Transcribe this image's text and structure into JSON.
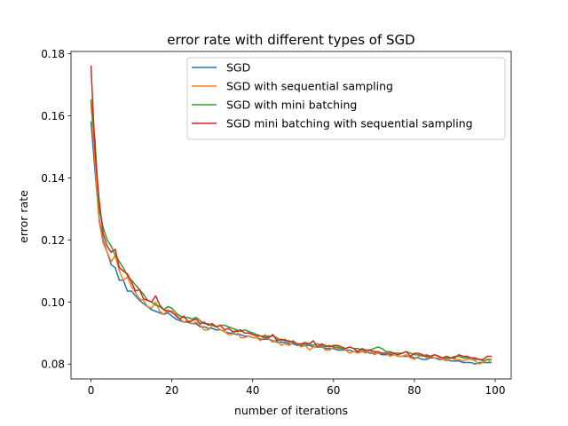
{
  "chart_data": {
    "type": "line",
    "title": "error rate with different types of SGD",
    "xlabel": "number of iterations",
    "ylabel": "error rate",
    "xlim": [
      -4.95,
      103.95
    ],
    "ylim": [
      0.0752,
      0.1807
    ],
    "xticks": [
      0,
      20,
      40,
      60,
      80,
      100
    ],
    "xtick_labels": [
      "0",
      "20",
      "40",
      "60",
      "80",
      "100"
    ],
    "yticks": [
      0.08,
      0.1,
      0.12,
      0.14,
      0.16,
      0.18
    ],
    "ytick_labels": [
      "0.08",
      "0.10",
      "0.12",
      "0.14",
      "0.16",
      "0.18"
    ],
    "grid": false,
    "legend": "top-right",
    "x": [
      0,
      1,
      2,
      3,
      4,
      5,
      6,
      7,
      8,
      9,
      10,
      11,
      12,
      13,
      14,
      15,
      16,
      17,
      18,
      19,
      20,
      21,
      22,
      23,
      24,
      25,
      26,
      27,
      28,
      29,
      30,
      31,
      32,
      33,
      34,
      35,
      36,
      37,
      38,
      39,
      40,
      41,
      42,
      43,
      44,
      45,
      46,
      47,
      48,
      49,
      50,
      51,
      52,
      53,
      54,
      55,
      56,
      57,
      58,
      59,
      60,
      61,
      62,
      63,
      64,
      65,
      66,
      67,
      68,
      69,
      70,
      71,
      72,
      73,
      74,
      75,
      76,
      77,
      78,
      79,
      80,
      81,
      82,
      83,
      84,
      85,
      86,
      87,
      88,
      89,
      90,
      91,
      92,
      93,
      94,
      95,
      96,
      97,
      98,
      99
    ],
    "series": [
      {
        "name": "SGD",
        "color": "#1f77b4",
        "values": [
          0.158,
          0.142,
          0.127,
          0.12,
          0.116,
          0.112,
          0.111,
          0.107,
          0.107,
          0.1035,
          0.1035,
          0.102,
          0.1005,
          0.0995,
          0.0985,
          0.0975,
          0.097,
          0.0965,
          0.096,
          0.0965,
          0.0955,
          0.0945,
          0.094,
          0.0935,
          0.0935,
          0.093,
          0.093,
          0.092,
          0.092,
          0.0915,
          0.0915,
          0.091,
          0.091,
          0.0905,
          0.09,
          0.09,
          0.0895,
          0.0895,
          0.089,
          0.089,
          0.0885,
          0.0885,
          0.088,
          0.088,
          0.088,
          0.0875,
          0.087,
          0.087,
          0.087,
          0.0865,
          0.0865,
          0.086,
          0.086,
          0.086,
          0.086,
          0.0855,
          0.0855,
          0.0855,
          0.085,
          0.085,
          0.085,
          0.0845,
          0.0845,
          0.0845,
          0.0845,
          0.084,
          0.084,
          0.084,
          0.084,
          0.0835,
          0.0835,
          0.0835,
          0.083,
          0.083,
          0.083,
          0.083,
          0.0825,
          0.0825,
          0.0825,
          0.0825,
          0.082,
          0.082,
          0.0815,
          0.0815,
          0.082,
          0.082,
          0.0815,
          0.0815,
          0.0815,
          0.081,
          0.081,
          0.081,
          0.0805,
          0.0805,
          0.0805,
          0.08,
          0.0805,
          0.0805,
          0.0805,
          0.0805
        ]
      },
      {
        "name": "SGD with sequential sampling",
        "color": "#ff7f0e",
        "values": [
          0.164,
          0.145,
          0.126,
          0.119,
          0.116,
          0.113,
          0.115,
          0.11,
          0.107,
          0.108,
          0.105,
          0.103,
          0.101,
          0.1005,
          0.0985,
          0.098,
          0.1,
          0.097,
          0.096,
          0.0975,
          0.0965,
          0.096,
          0.0945,
          0.0935,
          0.094,
          0.093,
          0.0935,
          0.0925,
          0.091,
          0.091,
          0.0925,
          0.092,
          0.091,
          0.0905,
          0.0895,
          0.0895,
          0.091,
          0.0885,
          0.0885,
          0.089,
          0.0885,
          0.0885,
          0.0875,
          0.0895,
          0.088,
          0.087,
          0.088,
          0.086,
          0.0865,
          0.086,
          0.087,
          0.0865,
          0.0855,
          0.086,
          0.0845,
          0.0855,
          0.0855,
          0.086,
          0.0845,
          0.0845,
          0.0855,
          0.085,
          0.085,
          0.0845,
          0.0835,
          0.084,
          0.0835,
          0.084,
          0.0835,
          0.0845,
          0.083,
          0.0835,
          0.0835,
          0.0835,
          0.0825,
          0.083,
          0.0825,
          0.0825,
          0.083,
          0.082,
          0.0815,
          0.0825,
          0.083,
          0.082,
          0.0825,
          0.082,
          0.082,
          0.0815,
          0.081,
          0.082,
          0.0815,
          0.0815,
          0.081,
          0.0815,
          0.0815,
          0.081,
          0.08,
          0.0805,
          0.0815,
          0.0805
        ]
      },
      {
        "name": "SGD with mini batching",
        "color": "#2ca02c",
        "values": [
          0.165,
          0.152,
          0.13,
          0.124,
          0.12,
          0.118,
          0.115,
          0.113,
          0.111,
          0.1085,
          0.107,
          0.1055,
          0.104,
          0.1025,
          0.1005,
          0.1,
          0.099,
          0.0985,
          0.0975,
          0.0985,
          0.098,
          0.0965,
          0.0955,
          0.095,
          0.095,
          0.0945,
          0.095,
          0.094,
          0.093,
          0.093,
          0.0925,
          0.092,
          0.0925,
          0.0925,
          0.092,
          0.0915,
          0.091,
          0.0905,
          0.091,
          0.0905,
          0.09,
          0.0895,
          0.089,
          0.089,
          0.089,
          0.089,
          0.0885,
          0.0875,
          0.088,
          0.087,
          0.0875,
          0.0865,
          0.0865,
          0.087,
          0.0865,
          0.086,
          0.0865,
          0.086,
          0.0855,
          0.086,
          0.0855,
          0.0855,
          0.085,
          0.085,
          0.0855,
          0.085,
          0.085,
          0.0845,
          0.0845,
          0.0845,
          0.085,
          0.0855,
          0.085,
          0.084,
          0.084,
          0.0835,
          0.0835,
          0.0835,
          0.084,
          0.0835,
          0.083,
          0.083,
          0.0825,
          0.083,
          0.0825,
          0.083,
          0.0825,
          0.082,
          0.082,
          0.082,
          0.0825,
          0.0825,
          0.082,
          0.082,
          0.082,
          0.0815,
          0.0815,
          0.081,
          0.0815,
          0.0815
        ]
      },
      {
        "name": "SGD mini batching with sequential sampling",
        "color": "#d62728",
        "values": [
          0.176,
          0.148,
          0.133,
          0.122,
          0.118,
          0.116,
          0.117,
          0.111,
          0.11,
          0.109,
          0.1065,
          0.1035,
          0.104,
          0.101,
          0.1005,
          0.1,
          0.102,
          0.099,
          0.0975,
          0.097,
          0.097,
          0.0955,
          0.0945,
          0.0955,
          0.0935,
          0.094,
          0.0945,
          0.093,
          0.0935,
          0.0925,
          0.093,
          0.092,
          0.0925,
          0.091,
          0.0915,
          0.0905,
          0.0905,
          0.091,
          0.09,
          0.09,
          0.0895,
          0.089,
          0.089,
          0.0885,
          0.0885,
          0.0895,
          0.0875,
          0.088,
          0.0875,
          0.0875,
          0.087,
          0.0865,
          0.0865,
          0.0865,
          0.0865,
          0.0875,
          0.0855,
          0.0865,
          0.086,
          0.0855,
          0.086,
          0.086,
          0.0855,
          0.085,
          0.0855,
          0.085,
          0.084,
          0.085,
          0.0845,
          0.0845,
          0.084,
          0.084,
          0.0835,
          0.0835,
          0.0835,
          0.0835,
          0.083,
          0.0835,
          0.084,
          0.0825,
          0.0835,
          0.0835,
          0.083,
          0.0825,
          0.0825,
          0.083,
          0.0825,
          0.082,
          0.0825,
          0.082,
          0.082,
          0.083,
          0.0825,
          0.0825,
          0.082,
          0.082,
          0.0815,
          0.0815,
          0.0825,
          0.0825
        ]
      }
    ]
  }
}
